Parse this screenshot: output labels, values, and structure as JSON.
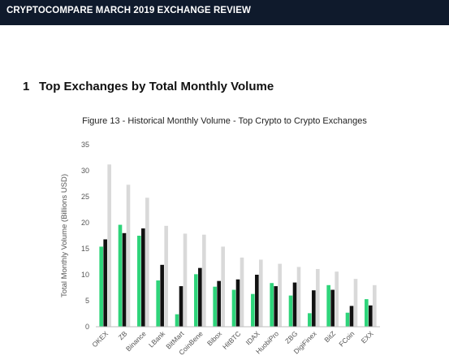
{
  "header": {
    "title": "CRYPTOCOMPARE MARCH 2019 EXCHANGE REVIEW"
  },
  "section": {
    "number": "1",
    "title": "Top Exchanges by Total Monthly Volume"
  },
  "figure": {
    "title": "Figure 13 - Historical Monthly Volume - Top Crypto to Crypto Exchanges"
  },
  "chart_data": {
    "type": "bar",
    "title": "Figure 13 - Historical Monthly Volume - Top Crypto to Crypto Exchanges",
    "xlabel": "",
    "ylabel": "Total Monthly Volume (Billions USD)",
    "ylim": [
      0,
      35
    ],
    "yticks": [
      0,
      5,
      10,
      15,
      20,
      25,
      30,
      35
    ],
    "grid": false,
    "legend": "none",
    "categories": [
      "OKEX",
      "ZB",
      "Binance",
      "LBank",
      "BitMart",
      "CoinBene",
      "Bibox",
      "HitBTC",
      "IDAX",
      "HuobiPro",
      "ZBG",
      "DigiFinex",
      "BitZ",
      "FCoin",
      "EXX"
    ],
    "series": [
      {
        "color": "#2ed47a",
        "values": [
          15.4,
          19.6,
          17.5,
          8.9,
          2.4,
          10.1,
          7.7,
          7.1,
          6.3,
          8.4,
          6.0,
          2.6,
          8.0,
          2.7,
          5.3
        ]
      },
      {
        "color": "#111111",
        "values": [
          16.8,
          18.0,
          18.9,
          11.9,
          7.8,
          11.3,
          8.8,
          9.1,
          10.0,
          7.8,
          8.5,
          7.0,
          7.1,
          4.0,
          4.1
        ]
      },
      {
        "color": "#d9d9d9",
        "values": [
          31.2,
          27.3,
          24.8,
          19.4,
          17.9,
          17.7,
          15.4,
          13.3,
          12.9,
          12.1,
          11.5,
          11.1,
          10.6,
          9.2,
          8.0
        ]
      }
    ]
  }
}
